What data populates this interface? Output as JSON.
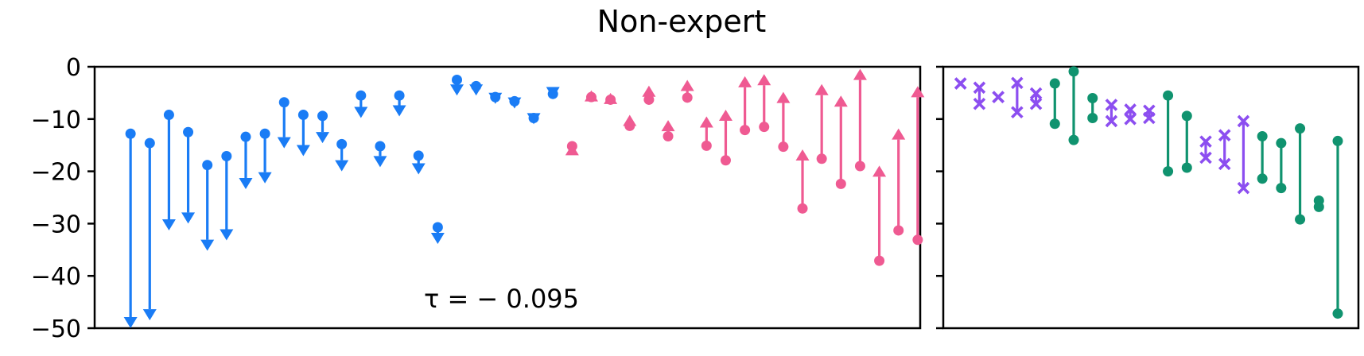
{
  "chart_data": {
    "type": "scatter",
    "title": "Non-expert",
    "ylim": [
      -50,
      0
    ],
    "yticks": [
      0,
      -10,
      -20,
      -30,
      -40,
      -50
    ],
    "yticklabels": [
      "0",
      "−10",
      "−20",
      "−30",
      "−40",
      "−50"
    ],
    "grid": false,
    "colors": {
      "decrease": "#1a7cf5",
      "increase": "#ef5a92",
      "violet": "#8c4ef0",
      "green": "#10936f"
    },
    "panels": [
      {
        "name": "left",
        "annotation": "τ = − 0.095",
        "xlim": [
          0,
          43
        ],
        "items": [
          {
            "x": 1,
            "start": -12.8,
            "end": -50.0,
            "kind": "decrease"
          },
          {
            "x": 2,
            "start": -14.6,
            "end": -48.5,
            "kind": "decrease"
          },
          {
            "x": 3,
            "start": -9.2,
            "end": -31.3,
            "kind": "decrease"
          },
          {
            "x": 4,
            "start": -12.5,
            "end": -30.0,
            "kind": "decrease"
          },
          {
            "x": 5,
            "start": -18.8,
            "end": -35.2,
            "kind": "decrease"
          },
          {
            "x": 6,
            "start": -17.1,
            "end": -33.2,
            "kind": "decrease"
          },
          {
            "x": 7,
            "start": -13.4,
            "end": -23.4,
            "kind": "decrease"
          },
          {
            "x": 8,
            "start": -12.8,
            "end": -22.3,
            "kind": "decrease"
          },
          {
            "x": 9,
            "start": -6.8,
            "end": -15.6,
            "kind": "decrease"
          },
          {
            "x": 10,
            "start": -9.2,
            "end": -17.1,
            "kind": "decrease"
          },
          {
            "x": 11,
            "start": -9.4,
            "end": -14.6,
            "kind": "decrease"
          },
          {
            "x": 12,
            "start": -14.8,
            "end": -20.0,
            "kind": "decrease"
          },
          {
            "x": 13,
            "start": -5.5,
            "end": -9.8,
            "kind": "decrease"
          },
          {
            "x": 14,
            "start": -15.2,
            "end": -19.2,
            "kind": "decrease"
          },
          {
            "x": 15,
            "start": -5.5,
            "end": -9.5,
            "kind": "decrease"
          },
          {
            "x": 16,
            "start": -17.0,
            "end": -20.6,
            "kind": "decrease"
          },
          {
            "x": 17,
            "start": -30.7,
            "end": -33.9,
            "kind": "decrease"
          },
          {
            "x": 18,
            "start": -2.5,
            "end": -5.5,
            "kind": "decrease"
          },
          {
            "x": 19,
            "start": -3.7,
            "end": -5.5,
            "kind": "decrease"
          },
          {
            "x": 20,
            "start": -5.8,
            "end": -7.1,
            "kind": "decrease"
          },
          {
            "x": 21,
            "start": -6.6,
            "end": -8.0,
            "kind": "decrease"
          },
          {
            "x": 22,
            "start": -9.8,
            "end": -11.0,
            "kind": "decrease"
          },
          {
            "x": 23,
            "start": -5.2,
            "end": -6.0,
            "kind": "decrease"
          },
          {
            "x": 24,
            "start": -15.2,
            "end": -14.8,
            "kind": "increase"
          },
          {
            "x": 25,
            "start": -5.8,
            "end": -4.5,
            "kind": "increase"
          },
          {
            "x": 26,
            "start": -6.3,
            "end": -5.0,
            "kind": "increase"
          },
          {
            "x": 27,
            "start": -11.3,
            "end": -9.2,
            "kind": "increase"
          },
          {
            "x": 28,
            "start": -6.3,
            "end": -3.6,
            "kind": "increase"
          },
          {
            "x": 29,
            "start": -13.3,
            "end": -10.2,
            "kind": "increase"
          },
          {
            "x": 30,
            "start": -5.9,
            "end": -2.5,
            "kind": "increase"
          },
          {
            "x": 31,
            "start": -15.1,
            "end": -9.5,
            "kind": "increase"
          },
          {
            "x": 32,
            "start": -17.9,
            "end": -8.2,
            "kind": "increase"
          },
          {
            "x": 33,
            "start": -12.1,
            "end": -1.8,
            "kind": "increase"
          },
          {
            "x": 34,
            "start": -11.5,
            "end": -1.4,
            "kind": "increase"
          },
          {
            "x": 35,
            "start": -15.3,
            "end": -4.8,
            "kind": "increase"
          },
          {
            "x": 36,
            "start": -27.1,
            "end": -15.8,
            "kind": "increase"
          },
          {
            "x": 37,
            "start": -17.6,
            "end": -3.3,
            "kind": "increase"
          },
          {
            "x": 38,
            "start": -22.4,
            "end": -5.5,
            "kind": "increase"
          },
          {
            "x": 39,
            "start": -19.0,
            "end": -0.4,
            "kind": "increase"
          },
          {
            "x": 40,
            "start": -37.1,
            "end": -18.9,
            "kind": "increase"
          },
          {
            "x": 41,
            "start": -31.3,
            "end": -11.8,
            "kind": "increase"
          },
          {
            "x": 42,
            "start": -33.1,
            "end": -3.7,
            "kind": "increase"
          }
        ]
      },
      {
        "name": "right",
        "xlim": [
          0,
          21
        ],
        "items": [
          {
            "x": 1,
            "start": -3.2,
            "end": -3.2,
            "kind": "violet"
          },
          {
            "x": 2,
            "start": -4.0,
            "end": -7.1,
            "kind": "violet"
          },
          {
            "x": 3,
            "start": -5.8,
            "end": -5.8,
            "kind": "violet"
          },
          {
            "x": 4,
            "start": -3.1,
            "end": -8.7,
            "kind": "violet"
          },
          {
            "x": 5,
            "start": -5.1,
            "end": -7.1,
            "kind": "violet"
          },
          {
            "x": 6,
            "start": -3.2,
            "end": -10.9,
            "kind": "green"
          },
          {
            "x": 7,
            "start": -0.9,
            "end": -14.0,
            "kind": "green"
          },
          {
            "x": 8,
            "start": -6.0,
            "end": -9.8,
            "kind": "green"
          },
          {
            "x": 9,
            "start": -7.3,
            "end": -10.4,
            "kind": "violet"
          },
          {
            "x": 10,
            "start": -8.2,
            "end": -10.0,
            "kind": "violet"
          },
          {
            "x": 11,
            "start": -8.4,
            "end": -9.8,
            "kind": "violet"
          },
          {
            "x": 12,
            "start": -5.5,
            "end": -20.0,
            "kind": "green"
          },
          {
            "x": 13,
            "start": -9.4,
            "end": -19.3,
            "kind": "green"
          },
          {
            "x": 14,
            "start": -14.3,
            "end": -17.4,
            "kind": "violet"
          },
          {
            "x": 15,
            "start": -13.1,
            "end": -18.6,
            "kind": "violet"
          },
          {
            "x": 16,
            "start": -10.4,
            "end": -23.2,
            "kind": "violet"
          },
          {
            "x": 17,
            "start": -13.3,
            "end": -21.4,
            "kind": "green"
          },
          {
            "x": 18,
            "start": -14.6,
            "end": -23.2,
            "kind": "green"
          },
          {
            "x": 19,
            "start": -11.8,
            "end": -29.2,
            "kind": "green"
          },
          {
            "x": 20,
            "start": -25.6,
            "end": -26.8,
            "kind": "green"
          },
          {
            "x": 21,
            "start": -14.2,
            "end": -47.2,
            "kind": "green"
          }
        ]
      }
    ]
  }
}
